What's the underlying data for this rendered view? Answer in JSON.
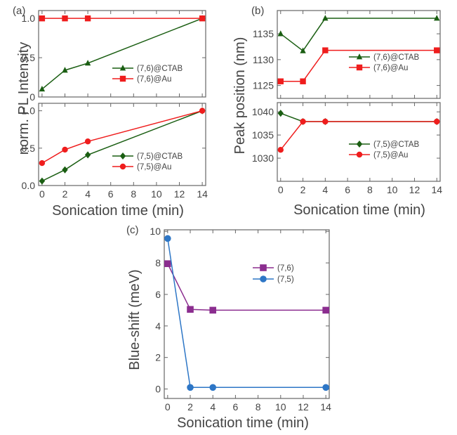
{
  "chart_data": [
    {
      "panel": "(a)",
      "type": "line",
      "ylabel": "norm. PL Intensity",
      "xlabel": "Sonication time (min)",
      "xticks": [
        0,
        2,
        4,
        6,
        8,
        10,
        12,
        14
      ],
      "xlim": [
        -0.3,
        14.3
      ],
      "subplots": [
        {
          "ylim": [
            0,
            1.1
          ],
          "yticks": [
            0,
            0.5,
            1.0
          ],
          "ytick_labels": [
            "0",
            "0.5",
            "1.0"
          ],
          "legend_position": "right",
          "series": [
            {
              "name": "(7,6)@CTAB",
              "color": "#1a5e12",
              "marker": "triangle",
              "x": [
                0,
                2,
                4,
                14
              ],
              "y": [
                0.1,
                0.34,
                0.43,
                1.0
              ]
            },
            {
              "name": "(7,6)@Au",
              "color": "#ef1d1d",
              "marker": "square",
              "x": [
                0,
                2,
                4,
                14
              ],
              "y": [
                1.0,
                1.0,
                1.0,
                1.0
              ]
            }
          ]
        },
        {
          "ylim": [
            0,
            1.1
          ],
          "yticks": [
            0,
            0.5,
            1.0
          ],
          "ytick_labels": [
            "0.0",
            "0.5",
            "1.0"
          ],
          "legend_position": "right",
          "series": [
            {
              "name": "(7,5)@CTAB",
              "color": "#1a5e12",
              "marker": "diamond",
              "x": [
                0,
                2,
                4,
                14
              ],
              "y": [
                0.06,
                0.21,
                0.41,
                1.0
              ]
            },
            {
              "name": "(7,5)@Au",
              "color": "#ef1d1d",
              "marker": "circle",
              "x": [
                0,
                2,
                4,
                14
              ],
              "y": [
                0.3,
                0.48,
                0.59,
                1.0
              ]
            }
          ]
        }
      ]
    },
    {
      "panel": "(b)",
      "type": "line",
      "ylabel": "Peak position (nm)",
      "xlabel": "Sonication time (min)",
      "xticks": [
        0,
        2,
        4,
        6,
        8,
        10,
        12,
        14
      ],
      "xlim": [
        -0.3,
        14.3
      ],
      "subplots": [
        {
          "ylim": [
            1122.5,
            1139.5
          ],
          "yticks": [
            1125,
            1130,
            1135
          ],
          "ytick_labels": [
            "1125",
            "1130",
            "1135"
          ],
          "legend_position": "right",
          "series": [
            {
              "name": "(7,6)@CTAB",
              "color": "#1a5e12",
              "marker": "triangle",
              "x": [
                0,
                2,
                4,
                14
              ],
              "y": [
                1135,
                1131.7,
                1138,
                1138
              ]
            },
            {
              "name": "(7,6)@Au",
              "color": "#ef1d1d",
              "marker": "square",
              "x": [
                0,
                2,
                4,
                14
              ],
              "y": [
                1125.8,
                1125.8,
                1131.8,
                1131.8
              ]
            }
          ]
        },
        {
          "ylim": [
            1025,
            1042
          ],
          "yticks": [
            1030,
            1035,
            1040
          ],
          "ytick_labels": [
            "1030",
            "1035",
            "1040"
          ],
          "legend_position": "right",
          "series": [
            {
              "name": "(7,5)@CTAB",
              "color": "#1a5e12",
              "marker": "diamond",
              "x": [
                0,
                2,
                4,
                14
              ],
              "y": [
                1039.7,
                1037.9,
                1037.9,
                1037.9
              ]
            },
            {
              "name": "(7,5)@Au",
              "color": "#ef1d1d",
              "marker": "circle",
              "x": [
                0,
                2,
                4,
                14
              ],
              "y": [
                1031.8,
                1037.9,
                1037.9,
                1037.9
              ]
            }
          ]
        }
      ]
    },
    {
      "panel": "(c)",
      "type": "line",
      "ylabel": "Blue-shift (meV)",
      "xlabel": "Sonication time (min)",
      "xticks": [
        0,
        2,
        4,
        6,
        8,
        10,
        12,
        14
      ],
      "xlim": [
        -0.3,
        14.3
      ],
      "ylim": [
        -0.6,
        10.1
      ],
      "yticks": [
        0,
        2,
        4,
        6,
        8,
        10
      ],
      "ytick_labels": [
        "0",
        "2",
        "4",
        "6",
        "8",
        "10"
      ],
      "legend_position": "top-right",
      "series": [
        {
          "name": "(7,6)",
          "color": "#8b2d8f",
          "marker": "square",
          "x": [
            0,
            2,
            4,
            14
          ],
          "y": [
            7.95,
            5.05,
            5.0,
            5.0
          ]
        },
        {
          "name": "(7,5)",
          "color": "#2d76c6",
          "marker": "circle",
          "x": [
            0,
            2,
            4,
            14
          ],
          "y": [
            9.55,
            0.1,
            0.1,
            0.1
          ]
        }
      ]
    }
  ]
}
